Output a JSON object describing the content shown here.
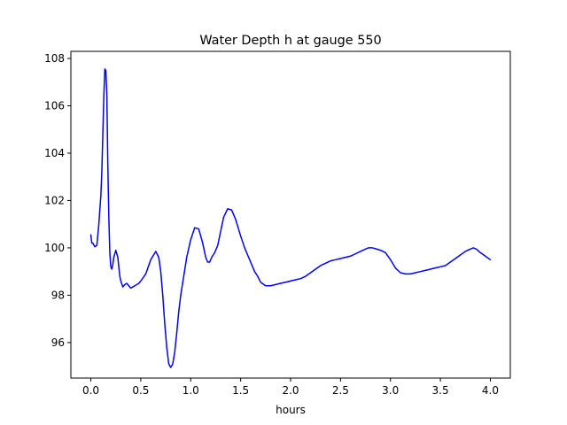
{
  "chart_data": {
    "type": "line",
    "title": "Water Depth h at gauge 550",
    "xlabel": "hours",
    "ylabel": "",
    "xlim": [
      -0.2,
      4.2
    ],
    "ylim": [
      94.5,
      108.3
    ],
    "xticks": [
      0.0,
      0.5,
      1.0,
      1.5,
      2.0,
      2.5,
      3.0,
      3.5,
      4.0
    ],
    "xtick_labels": [
      "0.0",
      "0.5",
      "1.0",
      "1.5",
      "2.0",
      "2.5",
      "3.0",
      "3.5",
      "4.0"
    ],
    "yticks": [
      96,
      98,
      100,
      102,
      104,
      106,
      108
    ],
    "ytick_labels": [
      "96",
      "98",
      "100",
      "102",
      "104",
      "106",
      "108"
    ],
    "grid": false,
    "legend": "none",
    "series": [
      {
        "color": "#0000ff",
        "x": [
          0.0,
          0.005,
          0.01,
          0.02,
          0.04,
          0.06,
          0.08,
          0.1,
          0.11,
          0.12,
          0.13,
          0.14,
          0.15,
          0.16,
          0.165,
          0.17,
          0.18,
          0.19,
          0.2,
          0.21,
          0.22,
          0.23,
          0.25,
          0.27,
          0.29,
          0.3,
          0.32,
          0.34,
          0.36,
          0.38,
          0.4,
          0.42,
          0.44,
          0.46,
          0.48,
          0.5,
          0.55,
          0.6,
          0.65,
          0.68,
          0.7,
          0.72,
          0.74,
          0.76,
          0.78,
          0.8,
          0.82,
          0.84,
          0.86,
          0.88,
          0.9,
          0.93,
          0.96,
          1.0,
          1.04,
          1.08,
          1.12,
          1.15,
          1.17,
          1.19,
          1.21,
          1.24,
          1.27,
          1.3,
          1.33,
          1.37,
          1.41,
          1.45,
          1.5,
          1.54,
          1.58,
          1.61,
          1.64,
          1.67,
          1.7,
          1.75,
          1.8,
          1.85,
          1.9,
          1.95,
          2.0,
          2.05,
          2.1,
          2.15,
          2.2,
          2.25,
          2.3,
          2.35,
          2.4,
          2.45,
          2.5,
          2.55,
          2.6,
          2.65,
          2.7,
          2.75,
          2.78,
          2.82,
          2.86,
          2.9,
          2.95,
          3.0,
          3.05,
          3.1,
          3.15,
          3.2,
          3.25,
          3.3,
          3.35,
          3.4,
          3.45,
          3.5,
          3.55,
          3.6,
          3.65,
          3.7,
          3.75,
          3.8,
          3.83,
          3.86,
          3.9,
          3.95,
          4.0
        ],
        "y": [
          100.55,
          100.35,
          100.2,
          100.2,
          100.05,
          100.1,
          101.0,
          102.2,
          103.2,
          104.8,
          106.4,
          107.55,
          107.5,
          106.5,
          105.0,
          103.5,
          101.3,
          99.8,
          99.2,
          99.1,
          99.3,
          99.6,
          99.9,
          99.6,
          98.8,
          98.6,
          98.35,
          98.45,
          98.5,
          98.4,
          98.3,
          98.35,
          98.4,
          98.45,
          98.5,
          98.6,
          98.9,
          99.5,
          99.85,
          99.6,
          99.0,
          98.0,
          96.8,
          95.8,
          95.1,
          94.95,
          95.1,
          95.6,
          96.4,
          97.3,
          98.0,
          98.8,
          99.6,
          100.35,
          100.85,
          100.8,
          100.2,
          99.6,
          99.4,
          99.4,
          99.6,
          99.8,
          100.1,
          100.7,
          101.3,
          101.65,
          101.6,
          101.2,
          100.5,
          100.0,
          99.6,
          99.3,
          99.0,
          98.8,
          98.55,
          98.4,
          98.4,
          98.45,
          98.5,
          98.55,
          98.6,
          98.65,
          98.7,
          98.8,
          98.95,
          99.1,
          99.25,
          99.35,
          99.45,
          99.5,
          99.55,
          99.6,
          99.65,
          99.75,
          99.85,
          99.95,
          100.0,
          100.0,
          99.95,
          99.9,
          99.8,
          99.5,
          99.15,
          98.95,
          98.9,
          98.9,
          98.95,
          99.0,
          99.05,
          99.1,
          99.15,
          99.2,
          99.25,
          99.4,
          99.55,
          99.7,
          99.85,
          99.95,
          100.0,
          99.95,
          99.8,
          99.65,
          99.5
        ]
      }
    ]
  }
}
